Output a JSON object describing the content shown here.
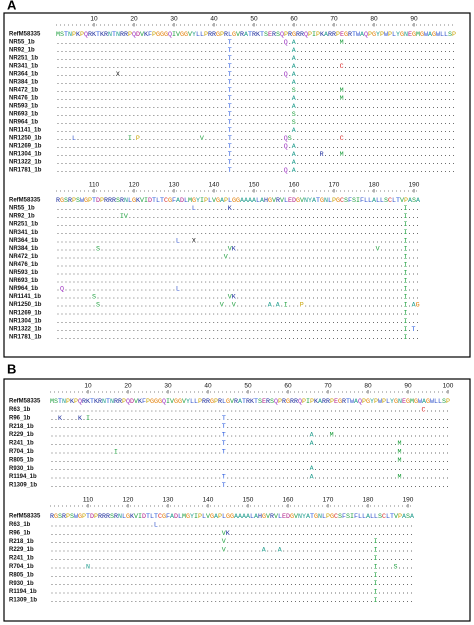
{
  "panels": [
    {
      "label": "A",
      "blocks": [
        {
          "ruler": [
            10,
            20,
            30,
            40,
            50,
            60,
            70,
            80,
            90
          ],
          "reference": {
            "name": "RefM58335",
            "sequence": "MSTNPKPQRKTKRNTNRRPQDVKFPGGGQIVGGVYLLPRRGPRLGVRATRKTSERSQPRGRRQPIPKARRPEGRTWAQPGYPWPLYGNEGMGWAGWLLSP"
          },
          "rows": [
            {
              "name": "NR55_1b",
              "sequence": "...........................................T.............Q.A...........M............................"
            },
            {
              "name": "NR92_1b",
              "sequence": "...........................................T...............A........................................"
            },
            {
              "name": "NR251_1b",
              "sequence": "...........................................T...............A........................................"
            },
            {
              "name": "NR341_1b",
              "sequence": "...........................................T...............A...........C............................"
            },
            {
              "name": "NR364_1b",
              "sequence": "...............X...........................T.............Q.A........................................"
            },
            {
              "name": "NR384_1b",
              "sequence": "...........................................T...............A........................................"
            },
            {
              "name": "NR472_1b",
              "sequence": "...........................................T...............S...........M............................"
            },
            {
              "name": "NR476_1b",
              "sequence": "...........................................T...............A...........M............................"
            },
            {
              "name": "NR593_1b",
              "sequence": "...........................................T...............A........................................"
            },
            {
              "name": "NR693_1b",
              "sequence": "...........................................T...............S........................................"
            },
            {
              "name": "NR964_1b",
              "sequence": "...........................................T...............S........................................"
            },
            {
              "name": "NR1141_1b",
              "sequence": "...........................................T...............A........................................"
            },
            {
              "name": "NR1250_1b",
              "sequence": "....L.............I.P...............V......T.............QS............C............................"
            },
            {
              "name": "NR1269_1b",
              "sequence": "...........................................T.............Q.A........................................"
            },
            {
              "name": "NR1304_1b",
              "sequence": "...........................................T...............A......R....M............................"
            },
            {
              "name": "NR1322_1b",
              "sequence": "...........................................T...............A........................................"
            },
            {
              "name": "NR1781_1b",
              "sequence": "...........................................T.............Q.A........................................"
            }
          ]
        },
        {
          "ruler": [
            110,
            120,
            130,
            140,
            150,
            160,
            170,
            180,
            190
          ],
          "reference": {
            "name": "RefM58335",
            "sequence": "RGSRPSWGPTDPRRRSRNLGKVIDTLTCGFADLMGYIPLVGAPLGGAAAALAHGVRVLEDGVNYATGNLPGCSFSIFLLALLSCLTVPASA"
          },
          "rows": [
            {
              "name": "NR55_1b",
              "sequence": "..................................L........K...........................................I..."
            },
            {
              "name": "NR92_1b",
              "sequence": "................IV.....................................................................I..."
            },
            {
              "name": "NR251_1b",
              "sequence": ".......................................................................................I..."
            },
            {
              "name": "NR341_1b",
              "sequence": ".......................................................................................I..."
            },
            {
              "name": "NR364_1b",
              "sequence": "..............................L...X....................................................I..."
            },
            {
              "name": "NR384_1b",
              "sequence": "..........S................................VK...................................V......I..."
            },
            {
              "name": "NR472_1b",
              "sequence": "..........................................V............................................I..."
            },
            {
              "name": "NR476_1b",
              "sequence": ".......................................................................................I..."
            },
            {
              "name": "NR593_1b",
              "sequence": ".......................................................................................I..."
            },
            {
              "name": "NR693_1b",
              "sequence": ".......................................................................................I..."
            },
            {
              "name": "NR964_1b",
              "sequence": ".Q............................L........................................................I..."
            },
            {
              "name": "NR1141_1b",
              "sequence": ".........S.................................VK..........................................I..."
            },
            {
              "name": "NR1250_1b",
              "sequence": "..........S..............................V..V........A.A.I...P.........................I.AG"
            },
            {
              "name": "NR1269_1b",
              "sequence": ".......................................................................................I..."
            },
            {
              "name": "NR1304_1b",
              "sequence": ".......................................................................................I..."
            },
            {
              "name": "NR1322_1b",
              "sequence": ".......................................................................................I.T."
            },
            {
              "name": "NR1781_1b",
              "sequence": ".......................................................................................I..."
            }
          ]
        }
      ]
    },
    {
      "label": "B",
      "blocks": [
        {
          "ruler": [
            10,
            20,
            30,
            40,
            50,
            60,
            70,
            80,
            90,
            100
          ],
          "reference": {
            "name": "RefM58335",
            "sequence": "MSTNPKPQRKTKRNTNRRPQDVKFPGGGQIVGGVYLLPRRGPRLGVRATRKTSERSQPRGRRQPIPKARRPEGRTWAQPGYPWPLYGNEGMGWAGWLLSP"
          },
          "rows": [
            {
              "name": "R63_1b",
              "sequence": ".............................................................................................C......"
            },
            {
              "name": "R96_1b",
              "sequence": "..K....K.I.................................T........................................................"
            },
            {
              "name": "R218_1b",
              "sequence": "...........................................T........................................................"
            },
            {
              "name": "R229_1b",
              "sequence": "...........................................T.....................A....M............................."
            },
            {
              "name": "R241_1b",
              "sequence": "...........................................T.....................A.....................M............"
            },
            {
              "name": "R704_1b",
              "sequence": "................I..........................T...........................................M............"
            },
            {
              "name": "R805_1b",
              "sequence": ".......................................................................................M............"
            },
            {
              "name": "R930_1b",
              "sequence": ".................................................................A.................................."
            },
            {
              "name": "R1194_1b",
              "sequence": "...........................................T.....................A.....................M............"
            },
            {
              "name": "R1309_1b",
              "sequence": "...........................................T........................................................"
            }
          ]
        },
        {
          "ruler": [
            110,
            120,
            130,
            140,
            150,
            160,
            170,
            180,
            190
          ],
          "reference": {
            "name": "RefM58335",
            "sequence": "RGSRPSWGPTDPRRRSRNLGKVIDTLTCGFADLMGYIPLVGAPLGGAAAALAHGVRVLEDGVNYATGNLPGCSFSIFLLALLSCLTVPASA"
          },
          "rows": [
            {
              "name": "R63_1b",
              "sequence": "..........................L................................................................"
            },
            {
              "name": "R96_1b",
              "sequence": "...........................................VK.............................................."
            },
            {
              "name": "R218_1b",
              "sequence": "...........................................V.....................................I........."
            },
            {
              "name": "R229_1b",
              "sequence": "...........................................V.........A...A.......................I........."
            },
            {
              "name": "R241_1b",
              "sequence": ".................................................................................I........."
            },
            {
              "name": "R704_1b",
              "sequence": ".........N.......................................................................I....S...."
            },
            {
              "name": "R805_1b",
              "sequence": ".................................................................................I........."
            },
            {
              "name": "R930_1b",
              "sequence": ".................................................................................I........."
            },
            {
              "name": "R1194_1b",
              "sequence": ".................................................................................I........."
            },
            {
              "name": "R1309_1b",
              "sequence": ".................................................................................I........."
            }
          ]
        }
      ]
    }
  ]
}
